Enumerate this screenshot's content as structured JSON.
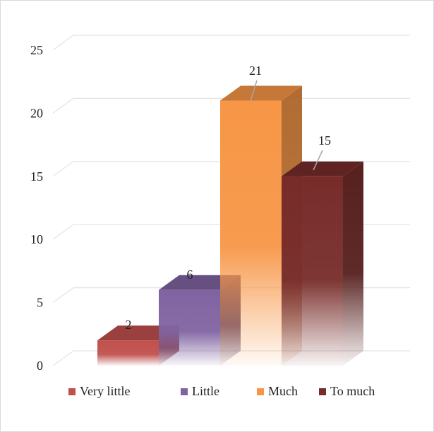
{
  "chart_data": {
    "type": "bar",
    "title": "",
    "xlabel": "",
    "ylabel": "",
    "categories": [
      "Very little",
      "Little",
      "Much",
      "To much"
    ],
    "values": [
      2,
      6,
      21,
      15
    ],
    "data_labels": [
      "2",
      "6",
      "21",
      "15"
    ],
    "ylim": [
      0,
      25
    ],
    "yticks": [
      0,
      5,
      10,
      15,
      20,
      25
    ],
    "grid": true,
    "legend_position": "bottom",
    "style": "3d-columns",
    "colors": [
      "#c0504d",
      "#8064a2",
      "#f79646",
      "#772c2a"
    ]
  }
}
